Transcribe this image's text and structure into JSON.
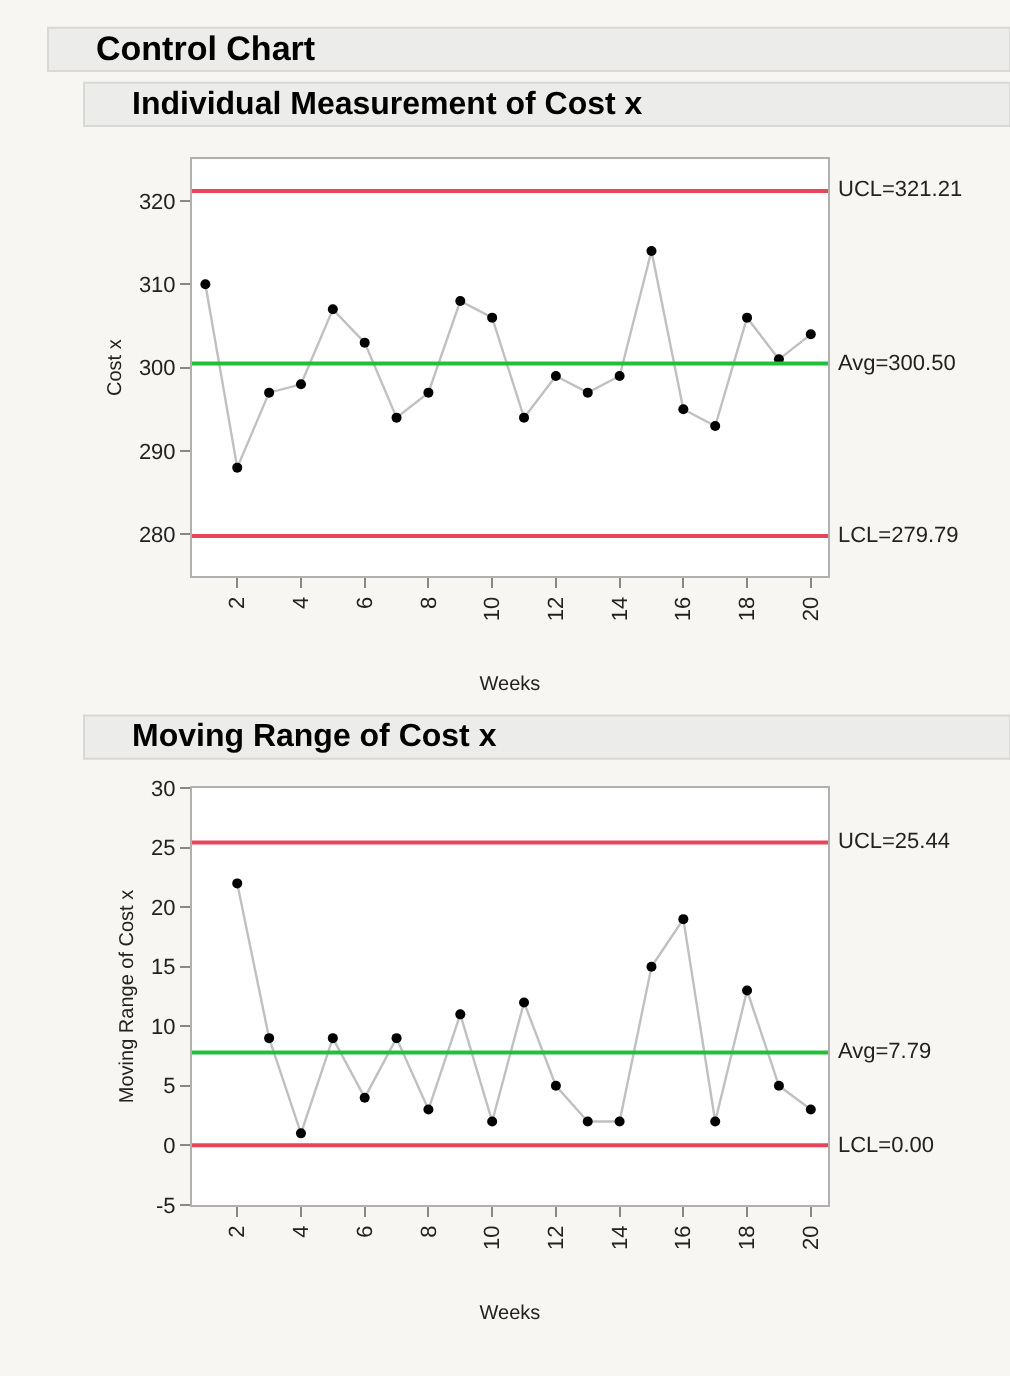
{
  "chart_data": [
    {
      "type": "line",
      "title": "Control Chart",
      "subtitle": "Individual Measurement of Cost x",
      "xlabel": "Weeks",
      "ylabel": "Cost x",
      "x": [
        1,
        2,
        3,
        4,
        5,
        6,
        7,
        8,
        9,
        10,
        11,
        12,
        13,
        14,
        15,
        16,
        17,
        18,
        19,
        20
      ],
      "series": [
        {
          "color": "#c0c0c0",
          "values": [
            310,
            288,
            297,
            298,
            307,
            303,
            294,
            297,
            308,
            306,
            294,
            299,
            297,
            299,
            314,
            295,
            293,
            306,
            301,
            304
          ]
        }
      ],
      "marker": "circle",
      "line_style": "solid",
      "grid": false,
      "xlim": [
        0.58,
        20.54
      ],
      "xticks": [
        2,
        4,
        6,
        8,
        10,
        12,
        14,
        16,
        18,
        20
      ],
      "ylim": [
        275,
        325
      ],
      "yticks": [
        280,
        290,
        300,
        310,
        320
      ],
      "ref_lines": [
        {
          "axis": "y",
          "value": 321.21,
          "label": "UCL=321.21",
          "color": "#e8455a"
        },
        {
          "axis": "y",
          "value": 300.5,
          "label": "Avg=300.50",
          "color": "#22c03a"
        },
        {
          "axis": "y",
          "value": 279.79,
          "label": "LCL=279.79",
          "color": "#e8455a"
        }
      ]
    },
    {
      "type": "line",
      "title": "Moving Range of Cost x",
      "xlabel": "Weeks",
      "ylabel": "Moving Range of Cost x",
      "x": [
        2,
        3,
        4,
        5,
        6,
        7,
        8,
        9,
        10,
        11,
        12,
        13,
        14,
        15,
        16,
        17,
        18,
        19,
        20
      ],
      "series": [
        {
          "color": "#c0c0c0",
          "values": [
            22,
            9,
            1,
            9,
            4,
            9,
            3,
            11,
            2,
            12,
            5,
            2,
            2,
            15,
            19,
            2,
            13,
            5,
            3
          ]
        }
      ],
      "marker": "circle",
      "line_style": "solid",
      "grid": false,
      "xlim": [
        0.58,
        20.54
      ],
      "xticks": [
        2,
        4,
        6,
        8,
        10,
        12,
        14,
        16,
        18,
        20
      ],
      "ylim": [
        -5,
        30
      ],
      "yticks": [
        -5,
        0,
        5,
        10,
        15,
        20,
        25,
        30
      ],
      "ref_lines": [
        {
          "axis": "y",
          "value": 25.44,
          "label": "UCL=25.44",
          "color": "#e8455a"
        },
        {
          "axis": "y",
          "value": 7.79,
          "label": "Avg=7.79",
          "color": "#22c03a"
        },
        {
          "axis": "y",
          "value": 0,
          "label": "LCL=0.00",
          "color": "#e8455a"
        }
      ]
    }
  ]
}
